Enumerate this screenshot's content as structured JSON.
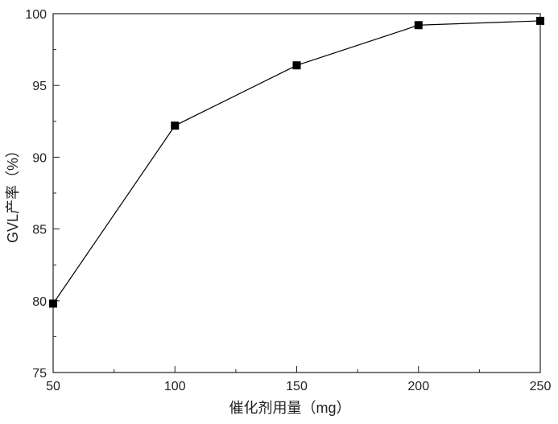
{
  "chart_data": {
    "type": "line",
    "x_label": "催化剂用量（mg）",
    "y_label": "GVL产率（%）",
    "x": [
      50,
      100,
      150,
      200,
      250
    ],
    "series": [
      {
        "color": "#000000",
        "values": [
          79.8,
          92.2,
          96.4,
          99.2,
          99.5
        ]
      }
    ],
    "xlim": [
      50,
      250
    ],
    "xticks": [
      50,
      100,
      150,
      200,
      250
    ],
    "ylim": [
      75,
      100
    ],
    "yticks": [
      75,
      80,
      85,
      90,
      95,
      100
    ]
  }
}
